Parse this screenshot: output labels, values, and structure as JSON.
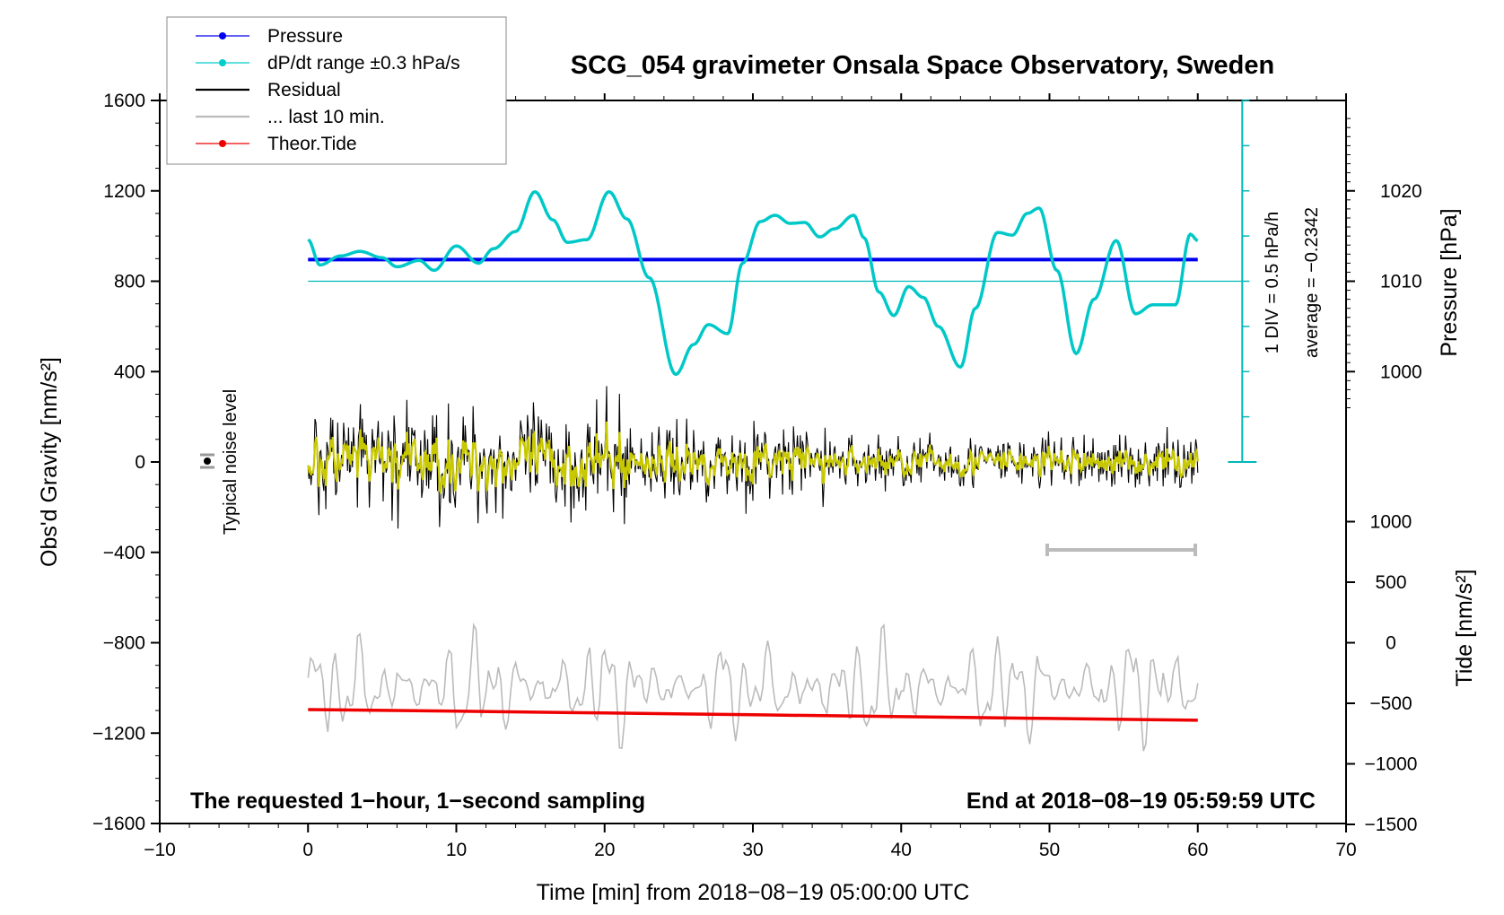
{
  "chart_data": {
    "type": "line",
    "title": "SCG_054 gravimeter Onsala Space Observatory, Sweden",
    "xlabel": "Time [min] from 2018−08−19 05:00:00 UTC",
    "ylabel_left": "Obs'd Gravity [nm/s²]",
    "ylabel_right_pressure": "Pressure [hPa]",
    "ylabel_right_tide": "Tide [nm/s²]",
    "xlim": [
      -10,
      70
    ],
    "ylim": [
      -1600,
      1600
    ],
    "x_ticks": [
      "−10",
      "0",
      "10",
      "20",
      "30",
      "40",
      "50",
      "60",
      "70"
    ],
    "y_ticks": [
      "1600",
      "1200",
      "800",
      "400",
      "0",
      "−400",
      "−800",
      "−1200",
      "−1600"
    ],
    "pressure_axis": {
      "ticks": [
        "1020",
        "1010",
        "1000"
      ],
      "range": [
        1000,
        1020
      ]
    },
    "tide_axis": {
      "ticks": [
        "1000",
        "500",
        "0",
        "−500",
        "−1000",
        "−1500"
      ],
      "range": [
        -1500,
        1000
      ]
    },
    "legend": [
      {
        "label": "Pressure",
        "color": "#0000ee"
      },
      {
        "label": "dP/dt range ±0.3 hPa/s",
        "color": "#00cccc"
      },
      {
        "label": "Residual",
        "color": "#000000"
      },
      {
        "label": "... last 10 min.",
        "color": "#bbbbbb"
      },
      {
        "label": "Theor.Tide",
        "color": "#ee0000"
      }
    ],
    "annotations": {
      "noise_label": "Typical noise level",
      "div_label": "1 DIV = 0.5 hPa/h",
      "average_label": "average = −0.2342",
      "bottom_left": "The requested 1−hour, 1−second sampling",
      "bottom_right": "End at 2018−08−19 05:59:59 UTC"
    },
    "series": [
      {
        "name": "Pressure",
        "color": "#0000ee",
        "x": [
          0,
          60
        ],
        "values": [
          1012.4,
          1012.4
        ]
      },
      {
        "name": "dP/dt",
        "color": "#00c8c8",
        "x": [
          0,
          0.8,
          2.2,
          3.5,
          5,
          6,
          7.5,
          8.5,
          10,
          11.5,
          12.5,
          14,
          15.3,
          16.5,
          17.5,
          18.8,
          20.3,
          21.5,
          23,
          24.8,
          26,
          27,
          28.3,
          29.3,
          30.5,
          31.5,
          32.5,
          33.5,
          34.5,
          35.5,
          36.8,
          37.5,
          38.5,
          39.5,
          40.5,
          41.5,
          42.5,
          44,
          45,
          46.5,
          47.5,
          48.5,
          49.3,
          50.5,
          51.8,
          53,
          54.5,
          55.8,
          57,
          58.5,
          59.5,
          60
        ],
        "values": [
          1014.6,
          1011.8,
          1012.8,
          1013.3,
          1012.6,
          1011.6,
          1012.3,
          1011.2,
          1013.9,
          1012.0,
          1013.6,
          1015.5,
          1019.9,
          1016.8,
          1014.3,
          1014.6,
          1019.9,
          1016.9,
          1010.4,
          999.7,
          1003.0,
          1005.2,
          1004.2,
          1012.0,
          1016.6,
          1017.3,
          1016.4,
          1016.5,
          1014.9,
          1015.8,
          1017.3,
          1014.8,
          1008.8,
          1006.2,
          1009.4,
          1008.2,
          1005.0,
          1000.5,
          1007.0,
          1015.4,
          1015.1,
          1017.5,
          1018.1,
          1011.2,
          1002.0,
          1008.0,
          1014.5,
          1006.4,
          1007.4,
          1007.4,
          1015.2,
          1014.5
        ]
      },
      {
        "name": "Residual",
        "color": "#000000",
        "x": [
          0,
          60
        ],
        "values": [
          0,
          0
        ]
      },
      {
        "name": "Residual (filtered)",
        "color": "#c8c800",
        "x": [
          0,
          60
        ],
        "values": [
          0,
          0
        ]
      },
      {
        "name": "... last 10 min.",
        "color": "#bbbbbb",
        "x": [
          0,
          60
        ],
        "values": [
          -500,
          -450
        ]
      },
      {
        "name": "Theor.Tide",
        "color": "#ee0000",
        "x": [
          0,
          10,
          20,
          30,
          40,
          50,
          60
        ],
        "values": [
          -552,
          -565,
          -580,
          -595,
          -610,
          -625,
          -640
        ]
      }
    ]
  }
}
